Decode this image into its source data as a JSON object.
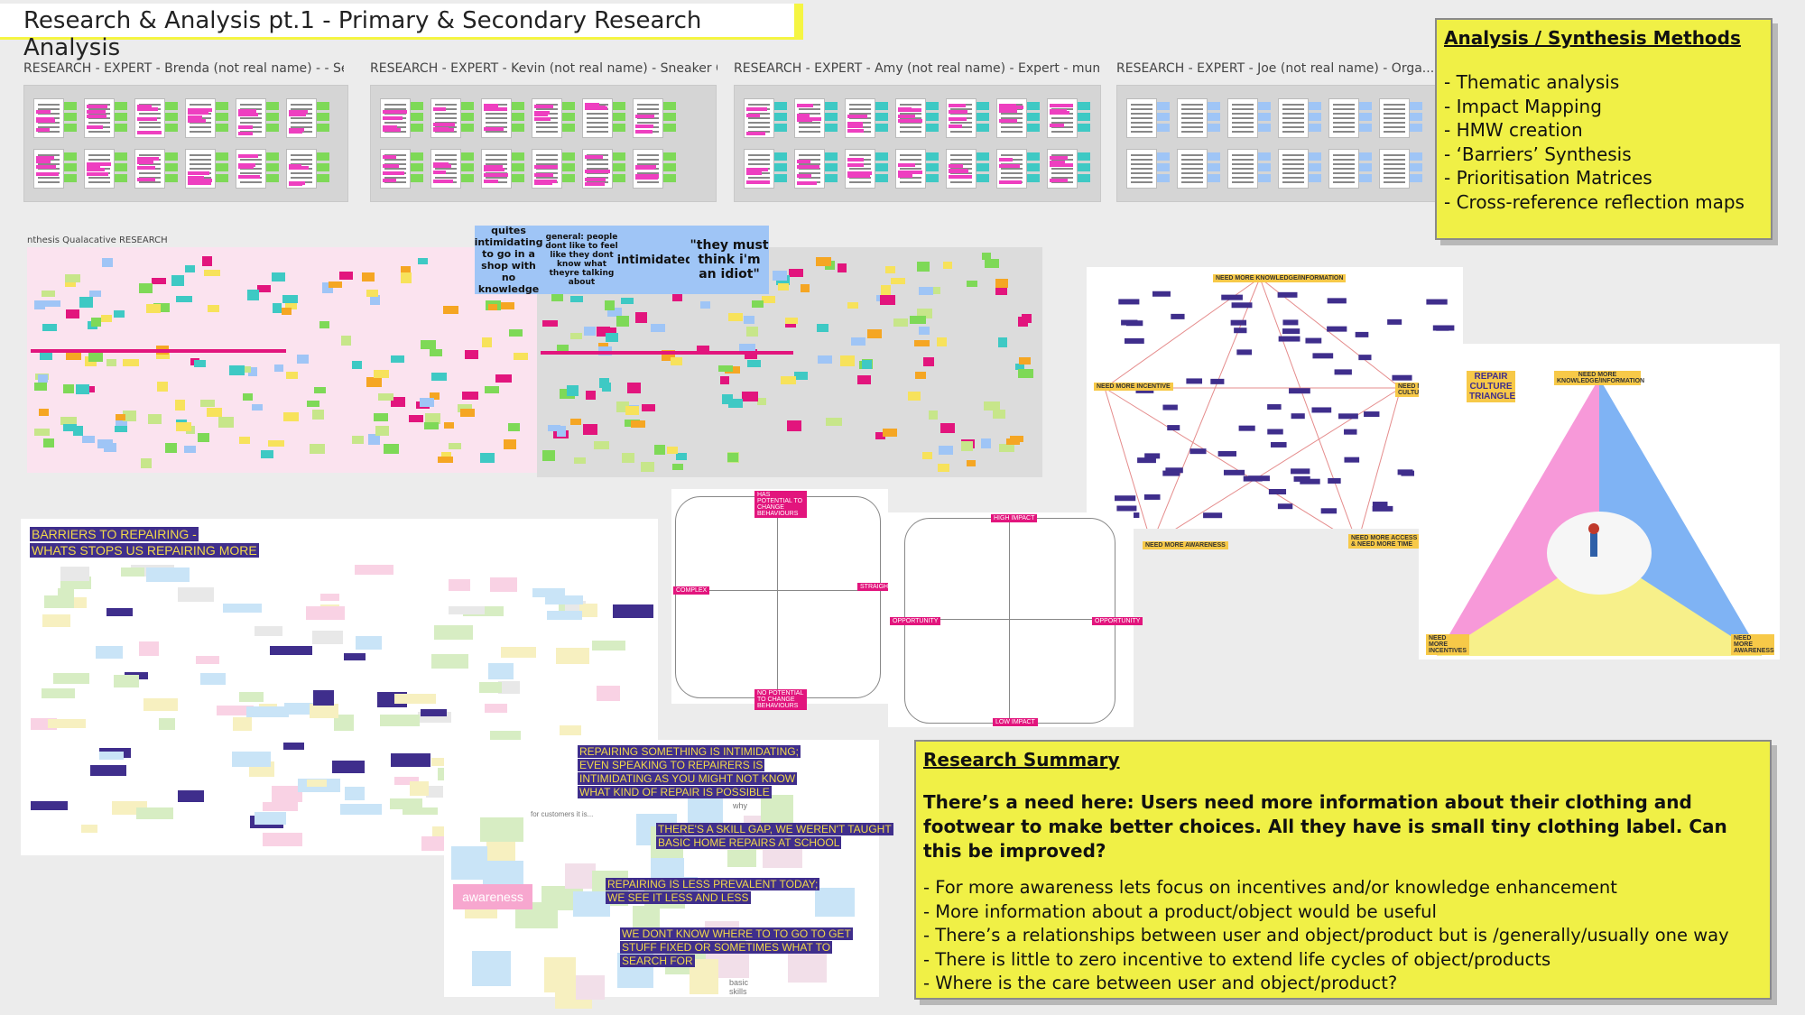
{
  "page": {
    "title": "Research & Analysis pt.1 - Primary & Secondary Research Analysis"
  },
  "expert_panels": [
    {
      "label": "RESEARCH - EXPERT - Brenda (not real name) -  - Se..."
    },
    {
      "label": "RESEARCH - EXPERT - Kevin (not real name) - Sneaker Cl..."
    },
    {
      "label": "RESEARCH - EXPERT - Amy (not real name) - Expert - mum -..."
    },
    {
      "label": "RESEARCH - EXPERT - Joe (not real name) -  Orga..."
    }
  ],
  "synthesis_board": {
    "label": "nthesis Qualacative RESEARCH",
    "quotes": [
      "quites intimidating to go in a shop with no knowledge",
      "general: people dont like to feel like they dont know what theyre talking about",
      "intimidated",
      "\"they must think i'm an idiot\""
    ]
  },
  "methods_box": {
    "heading": "Analysis / Synthesis Methods",
    "items": [
      "- Thematic analysis",
      "- Impact Mapping",
      "- HMW creation",
      "- ‘Barriers’ Synthesis",
      "- Prioritisation Matrices",
      "- Cross-reference reflection maps"
    ]
  },
  "impact_map": {
    "top": "NEED MORE KNOWLEDGE/INFORMATION",
    "left": "NEED MORE INCENTIVE",
    "right": "NEED NEW CULTURE",
    "bottom_left": "NEED MORE AWARENESS",
    "bottom_right": "NEED MORE ACCESS & NEED MORE TIME"
  },
  "triangle": {
    "title": "REPAIR CULTURE TRIANGLE",
    "top": "NEED MORE KNOWLEDGE/INFORMATION",
    "bottom_left": "NEED MORE INCENTIVES",
    "bottom_right": "NEED MORE AWARENESS"
  },
  "matrix_1": {
    "top": "HAS POTENTIAL TO CHANGE BEHAVIOURS",
    "bottom": "NO POTENTIAL TO CHANGE BEHAVIOURS",
    "left": "COMPLEX",
    "right": "STRAIGHTFORWARD"
  },
  "matrix_2": {
    "top": "HIGH IMPACT",
    "bottom": "LOW IMPACT",
    "left": "OPPORTUNITY",
    "right": "OPPORTUNITY"
  },
  "barriers_board": {
    "title_line1": "BARRIERS TO REPAIRING -",
    "title_line2": "WHATS STOPS US REPAIRING MORE"
  },
  "insights": {
    "i1": [
      "REPAIRING SOMETHING IS INTIMIDATING;",
      "EVEN SPEAKING TO REPAIRERS IS",
      "INTIMIDATING AS YOU MIGHT NOT KNOW",
      "WHAT KIND OF REPAIR IS POSSIBLE"
    ],
    "i2": [
      "THERE'S A SKILL GAP, WE WEREN'T TAUGHT",
      "BASIC HOME REPAIRS AT SCHOOL"
    ],
    "i3": [
      "REPAIRING IS LESS PREVALENT TODAY;",
      "WE SEE IT LESS AND LESS"
    ],
    "i4": [
      "WE DONT KNOW WHERE TO TO GO TO GET",
      "STUFF FIXED OR SOMETIMES WHAT TO",
      "SEARCH FOR"
    ],
    "awareness": "awareness",
    "for_customers": "for customers it is...",
    "basic_skills": "basic skills",
    "why": "why"
  },
  "summary_box": {
    "heading": "Research Summary",
    "lead": "There’s a need here: Users need more information about their clothing and footwear to make better choices. All they have is small tiny clothing label. Can this be improved?",
    "items": [
      "- For more awareness lets focus on incentives and/or knowledge enhancement",
      "- More information about a product/object would be useful",
      "- There’s a relationships between user and object/product but is /generally/usually one way",
      "- There is little to zero incentive to extend life cycles of object/products",
      "- Where is the care between user and object/product?"
    ]
  },
  "colors": {
    "highlight_yellow": "#f0f046",
    "sticky_pink": "#ee3fc0",
    "sticky_green": "#7ed957",
    "sticky_teal": "#3ec9c4",
    "sticky_blue": "#9fc5f6",
    "insight_purple": "#3f2e8c"
  }
}
